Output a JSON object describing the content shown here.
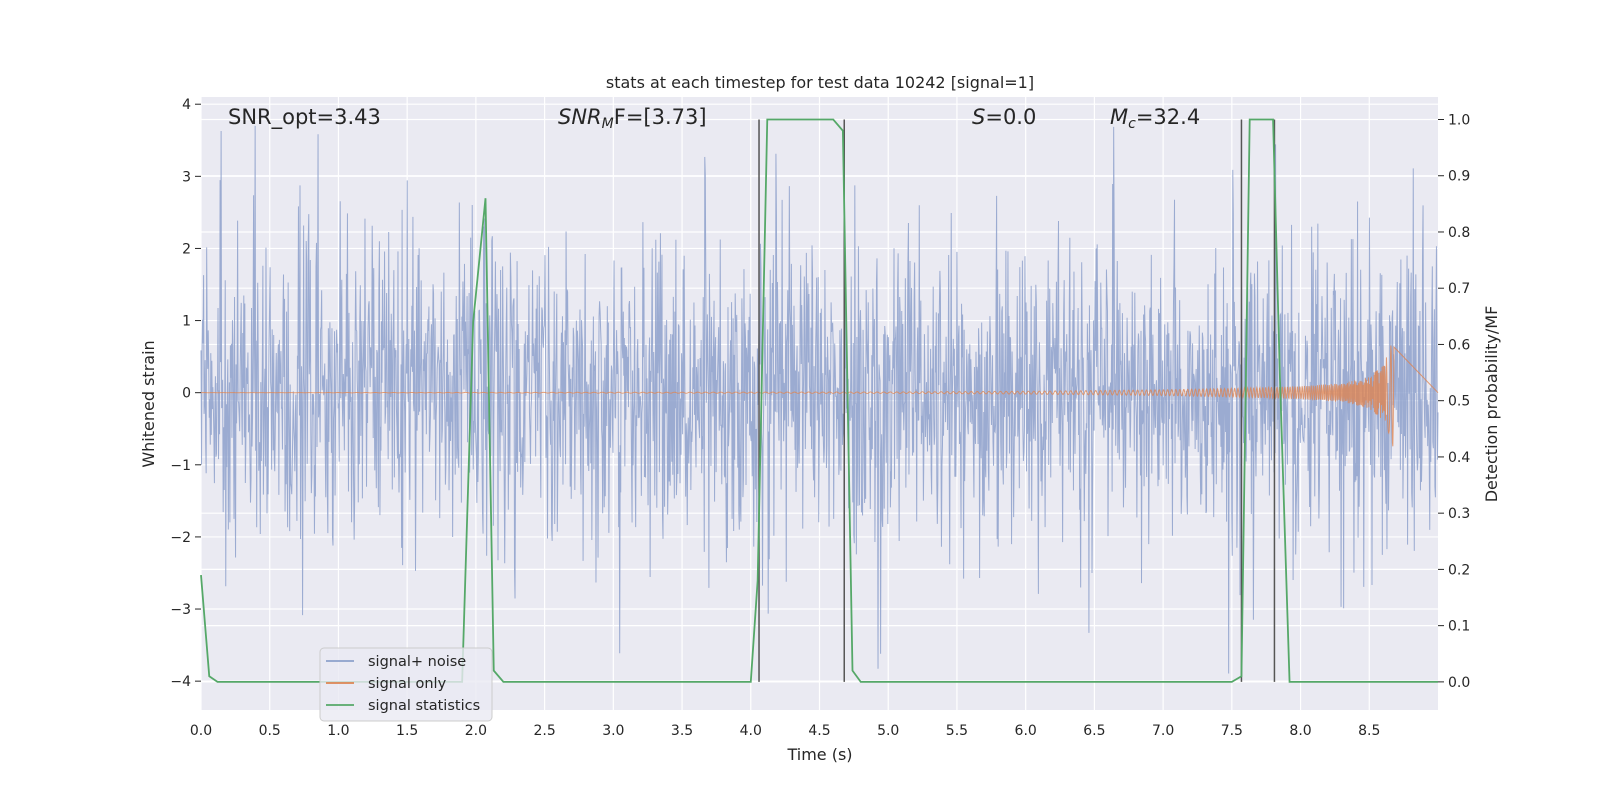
{
  "chart_data": {
    "type": "line",
    "title": "stats at each timestep for test data 10242 [signal=1]",
    "xlabel": "Time (s)",
    "ylabel_left": "Whitened strain",
    "ylabel_right": "Detection probability/MF",
    "xlim": [
      0.0,
      9.0
    ],
    "ylim_left": [
      -4.4,
      4.1
    ],
    "ylim_right": [
      -0.05,
      1.04
    ],
    "xticks": [
      "0.0",
      "0.5",
      "1.0",
      "1.5",
      "2.0",
      "2.5",
      "3.0",
      "3.5",
      "4.0",
      "4.5",
      "5.0",
      "5.5",
      "6.0",
      "6.5",
      "7.0",
      "7.5",
      "8.0",
      "8.5"
    ],
    "yticks_left": [
      "−4",
      "−3",
      "−2",
      "−1",
      "0",
      "1",
      "2",
      "3",
      "4"
    ],
    "yticks_right": [
      "0.0",
      "0.1",
      "0.2",
      "0.3",
      "0.4",
      "0.5",
      "0.6",
      "0.7",
      "0.8",
      "0.9",
      "1.0"
    ],
    "grid": true,
    "legend_position": "lower-left",
    "annotations": {
      "snr_opt": "SNR_opt=3.43",
      "snr_mf_main": "SNR",
      "snr_mf_sub": "M",
      "snr_mf_tail": "F=[3.73]",
      "s_main": "S",
      "s_tail": "=0.0",
      "mc_main": "M",
      "mc_sub": "c",
      "mc_tail": "=32.4"
    },
    "series": [
      {
        "name": "signal+ noise",
        "color": "#8da0cb",
        "style": "dense noise, amplitude mostly within -2.5 to 2.5, spikes up to about 3.7 and down to -4.0",
        "amplitude_typical": 2.3,
        "range": [
          -4.0,
          3.7
        ]
      },
      {
        "name": "signal only",
        "color": "#dd8452",
        "style": "chirp near zero growing toward the end",
        "x": [
          0.0,
          5.0,
          6.0,
          7.0,
          7.5,
          8.0,
          8.3,
          8.5,
          8.6,
          8.65,
          8.68
        ],
        "envelope": [
          0.0,
          0.01,
          0.02,
          0.04,
          0.06,
          0.09,
          0.13,
          0.22,
          0.38,
          0.6,
          0.85
        ]
      },
      {
        "name": "signal statistics",
        "color": "#55a868",
        "axis": "right",
        "x": [
          0.0,
          0.06,
          0.12,
          1.9,
          1.98,
          2.07,
          2.13,
          2.2,
          2.7,
          2.8,
          4.0,
          4.05,
          4.12,
          4.6,
          4.67,
          4.74,
          4.8,
          7.5,
          7.57,
          7.63,
          7.8,
          7.85,
          7.92,
          8.5,
          9.0
        ],
        "y": [
          0.19,
          0.01,
          0.0,
          0.0,
          0.64,
          0.86,
          0.02,
          0.0,
          0.0,
          0.0,
          0.0,
          0.18,
          1.0,
          1.0,
          0.98,
          0.02,
          0.0,
          0.0,
          0.01,
          1.0,
          1.0,
          0.54,
          0.0,
          0.0,
          0.0
        ]
      }
    ],
    "vertical_markers": {
      "color": "#555555",
      "x": [
        4.06,
        4.68,
        7.57,
        7.81
      ],
      "y_range": [
        0.0,
        1.0
      ]
    },
    "legend": [
      "signal+ noise",
      "signal only",
      "signal statistics"
    ]
  }
}
